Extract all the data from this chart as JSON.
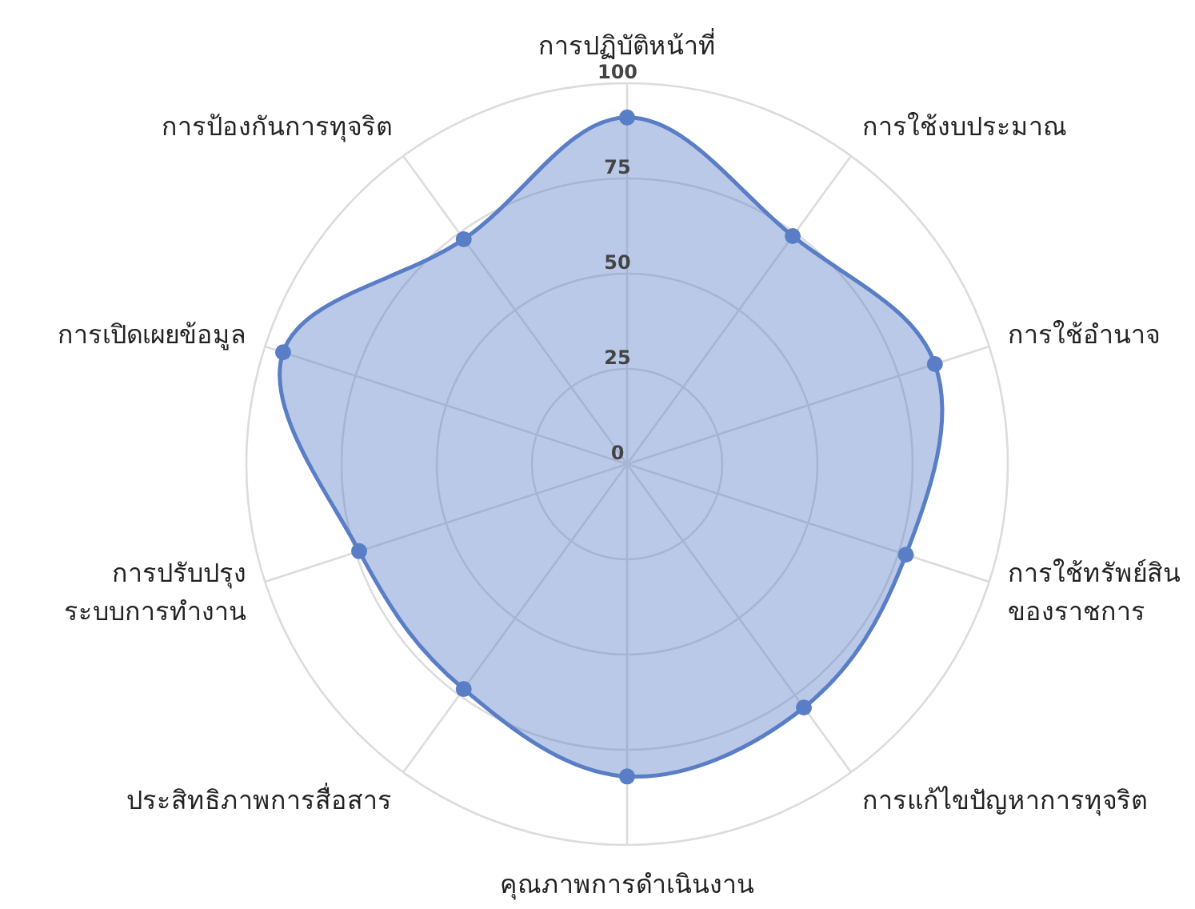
{
  "chart_data": {
    "type": "radar",
    "categories": [
      "การปฏิบัติหน้าที่",
      "การใช้งบประมาณ",
      "การใช้อำนาจ",
      "การใช้ทรัพย์สิน\nของราชการ",
      "การแก้ไขปัญหาการทุจริต",
      "คุณภาพการดำเนินงาน",
      "ประสิทธิภาพการสื่อสาร",
      "การปรับปรุง\nระบบการทำงาน",
      "การเปิดเผยข้อมูล",
      "การป้องกันการทุจริต"
    ],
    "series": [
      {
        "color": "#5a7ec6",
        "values": [
          91,
          74,
          85,
          77,
          79,
          82,
          73,
          74,
          95,
          73
        ]
      }
    ],
    "ylim": [
      0,
      100
    ],
    "yticks": [
      0,
      25,
      50,
      75,
      100
    ],
    "grid": true,
    "marker": "circle"
  }
}
